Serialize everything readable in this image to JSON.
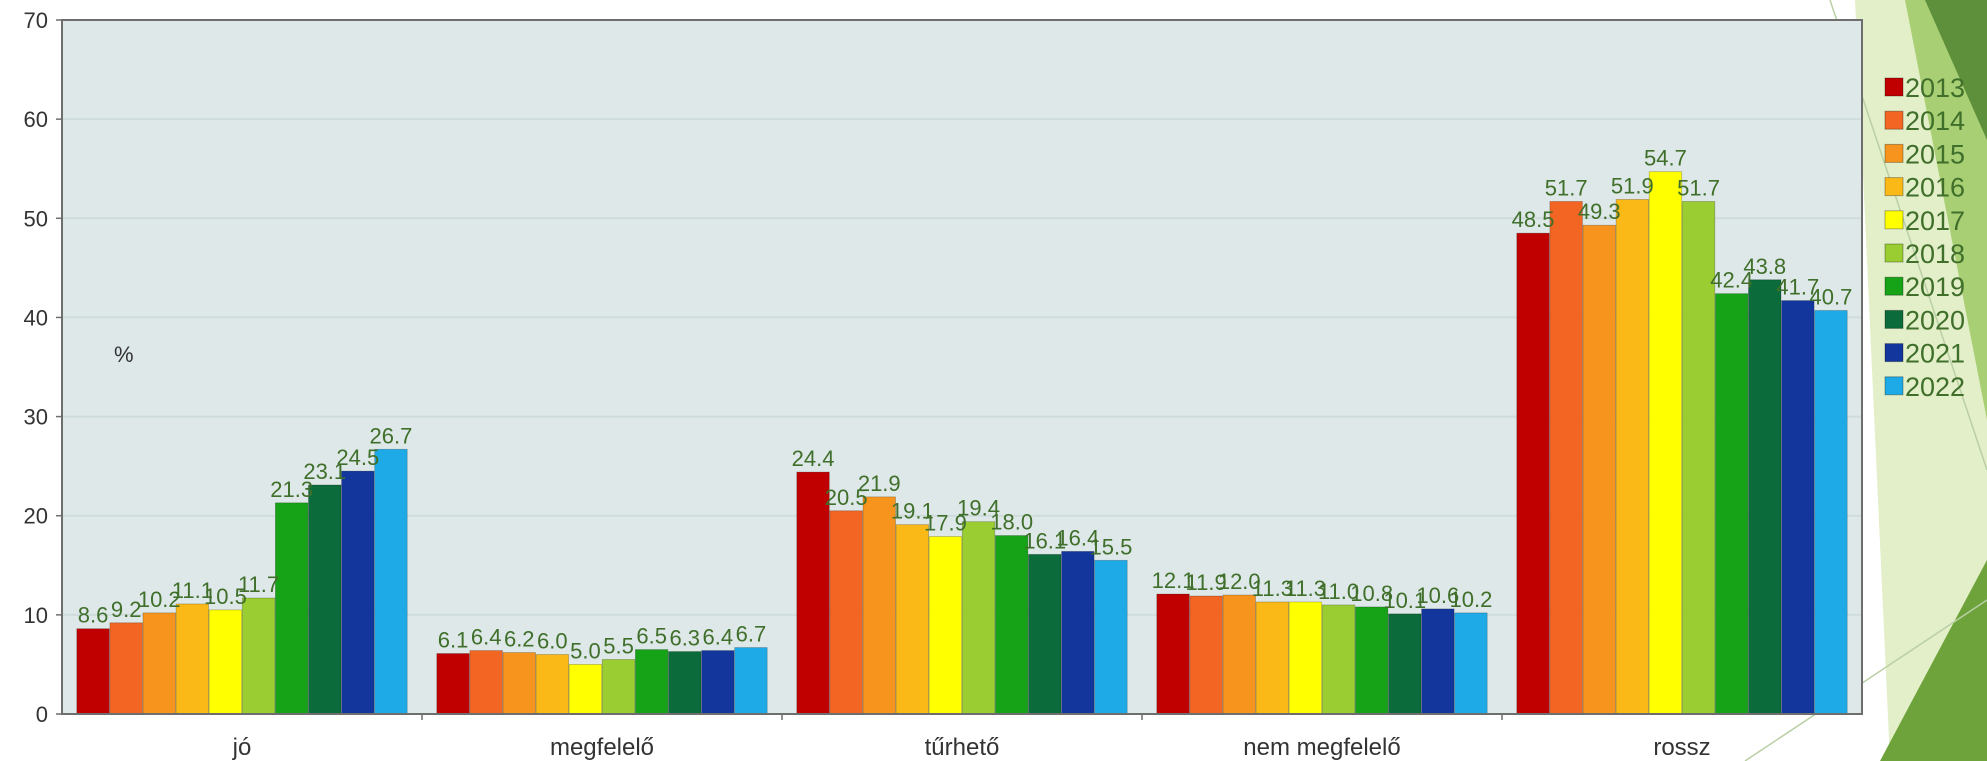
{
  "chart_data": {
    "type": "bar",
    "unit_label": "%",
    "ylim": [
      0,
      70
    ],
    "y_ticks": [
      0,
      10,
      20,
      30,
      40,
      50,
      60,
      70
    ],
    "grid": true,
    "legend_position": "right",
    "categories": [
      "jó",
      "megfelelő",
      "tűrhető",
      "nem megfelelő",
      "rossz"
    ],
    "series": [
      {
        "name": "2013",
        "color": "#c00000",
        "values": [
          8.6,
          6.1,
          24.4,
          12.1,
          48.5
        ]
      },
      {
        "name": "2014",
        "color": "#f26522",
        "values": [
          9.2,
          6.4,
          20.5,
          11.9,
          51.7
        ]
      },
      {
        "name": "2015",
        "color": "#f7941d",
        "values": [
          10.2,
          6.2,
          21.9,
          12.0,
          49.3
        ]
      },
      {
        "name": "2016",
        "color": "#fbb917",
        "values": [
          11.1,
          6.0,
          19.1,
          11.3,
          51.9
        ]
      },
      {
        "name": "2017",
        "color": "#ffff00",
        "values": [
          10.5,
          5.0,
          17.9,
          11.3,
          54.7
        ]
      },
      {
        "name": "2018",
        "color": "#9acd32",
        "values": [
          11.7,
          5.5,
          19.4,
          11.0,
          51.7
        ]
      },
      {
        "name": "2019",
        "color": "#17a317",
        "values": [
          21.3,
          6.5,
          18.0,
          10.8,
          42.4
        ]
      },
      {
        "name": "2020",
        "color": "#0b6b3a",
        "values": [
          23.1,
          6.3,
          16.1,
          10.1,
          43.8
        ]
      },
      {
        "name": "2021",
        "color": "#12369c",
        "values": [
          24.5,
          6.4,
          16.4,
          10.6,
          41.7
        ]
      },
      {
        "name": "2022",
        "color": "#1eaae7",
        "values": [
          26.7,
          6.7,
          15.5,
          10.2,
          40.7
        ]
      }
    ],
    "data_labels": [
      [
        "8.6",
        "9.2",
        "10.2",
        "11.1",
        "10.5",
        "11.7",
        "21.3",
        "23.1",
        "24.5",
        "26.7"
      ],
      [
        "6.1",
        "6.4",
        "6.2",
        "6.0",
        "5.0",
        "5.5",
        "6.5",
        "6.3",
        "6.4",
        "6.7"
      ],
      [
        "24.4",
        "20.5",
        "21.9",
        "19.1",
        "17.9",
        "19.4",
        "18.0",
        "16.1",
        "16.4",
        "15.5"
      ],
      [
        "12.1",
        "11.9",
        "12.0",
        "11.3",
        "11.3",
        "11.0",
        "10.8",
        "10.1",
        "10.6",
        "10.2"
      ],
      [
        "48.5",
        "51.7",
        "49.3",
        "51.9",
        "54.7",
        "51.7",
        "42.4",
        "43.8",
        "41.7",
        "40.7"
      ]
    ]
  }
}
